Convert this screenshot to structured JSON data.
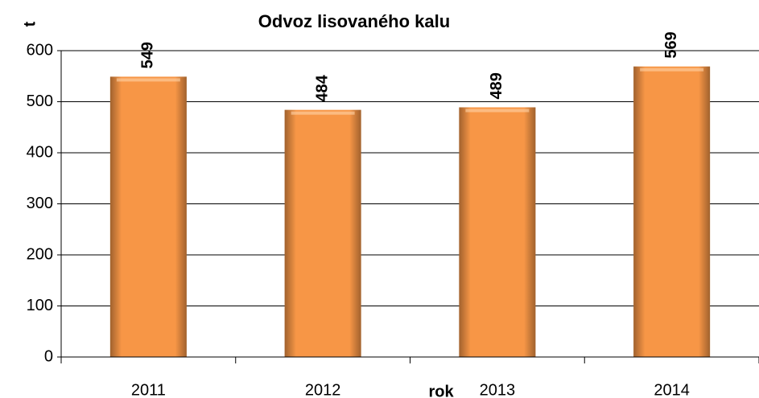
{
  "chart_data": {
    "type": "bar",
    "title": "Odvoz lisovaného kalu",
    "y_label": "t",
    "x_label": "rok",
    "categories": [
      "2011",
      "2012",
      "2013",
      "2014"
    ],
    "values": [
      549,
      484,
      489,
      569
    ],
    "color": "#f79646",
    "ylim": [
      0,
      600
    ],
    "yticks": [
      0,
      100,
      200,
      300,
      400,
      500,
      600
    ],
    "grid": true,
    "data_labels": true
  }
}
